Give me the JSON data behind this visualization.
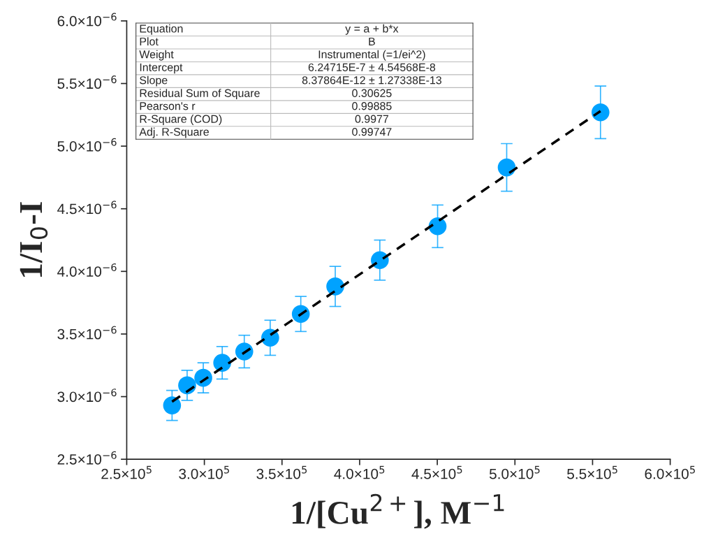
{
  "chart_data": {
    "type": "scatter",
    "xlabel": "1/[Cu$^{2+}$], M$^{−1}$",
    "ylabel": "1/I$_{0}$-I",
    "x": [
      279200,
      288900,
      299300,
      311500,
      325700,
      342400,
      362100,
      384300,
      413000,
      450200,
      494700,
      555100
    ],
    "series": [
      {
        "color": "#00a2ff",
        "marker": "circle",
        "values": [
          2.93e-06,
          3.09e-06,
          3.15e-06,
          3.27e-06,
          3.36e-06,
          3.47e-06,
          3.66e-06,
          3.88e-06,
          4.09e-06,
          4.36e-06,
          4.83e-06,
          5.27e-06
        ],
        "errors": [
          1.2e-07,
          1.2e-07,
          1.2e-07,
          1.3e-07,
          1.3e-07,
          1.4e-07,
          1.4e-07,
          1.6e-07,
          1.6e-07,
          1.7e-07,
          1.9e-07,
          2.1e-07
        ]
      },
      {
        "type": "line",
        "color": "#000000",
        "line_style": "dashed",
        "marker": "none",
        "x": [
          279200,
          555100
        ],
        "values": [
          2.96e-06,
          5.28e-06
        ]
      }
    ],
    "xlim": [
      250000,
      600000
    ],
    "xticks": [
      {
        "value": 250000,
        "label": "2.5×10$^{5}$"
      },
      {
        "value": 300000,
        "label": "3.0×10$^{5}$"
      },
      {
        "value": 350000,
        "label": "3.5×10$^{5}$"
      },
      {
        "value": 400000,
        "label": "4.0×10$^{5}$"
      },
      {
        "value": 450000,
        "label": "4.5×10$^{5}$"
      },
      {
        "value": 500000,
        "label": "5.0×10$^{5}$"
      },
      {
        "value": 550000,
        "label": "5.5×10$^{5}$"
      },
      {
        "value": 600000,
        "label": "6.0×10$^{5}$"
      }
    ],
    "ylim": [
      2.5e-06,
      6e-06
    ],
    "yticks": [
      {
        "value": 2.5e-06,
        "label": "2.5×10$^{−6}$"
      },
      {
        "value": 3e-06,
        "label": "3.0×10$^{−6}$"
      },
      {
        "value": 3.5e-06,
        "label": "3.5×10$^{−6}$"
      },
      {
        "value": 4e-06,
        "label": "4.0×10$^{−6}$"
      },
      {
        "value": 4.5e-06,
        "label": "4.5×10$^{−6}$"
      },
      {
        "value": 5e-06,
        "label": "5.0×10$^{−6}$"
      },
      {
        "value": 5.5e-06,
        "label": "5.5×10$^{−6}$"
      },
      {
        "value": 6e-06,
        "label": "6.0×10$^{−6}$"
      }
    ],
    "annotations": [
      "Equation",
      "y = a + b*x",
      "Plot",
      "B",
      "Weight",
      "Instrumental (=1/ei^2)",
      "Intercept",
      "6.24715E-7 ± 4.54568E-8",
      "Slope",
      "8.37864E-12 ± 1.27338E-13",
      "Residual Sum of Square",
      "0.30625",
      "Pearson's r",
      "0.99885",
      "R-Square (COD)",
      "0.9977",
      "Adj. R-Square",
      "0.99747"
    ],
    "grid": false,
    "legend": false
  }
}
